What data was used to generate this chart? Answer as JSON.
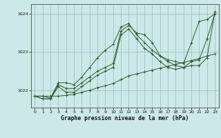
{
  "title": "Graphe pression niveau de la mer (hPa)",
  "background_color": "#cce8e8",
  "grid_color": "#99bbbb",
  "line_color": "#2d5a2d",
  "xlim": [
    -0.5,
    23.5
  ],
  "ylim": [
    1021.55,
    1024.25
  ],
  "yticks": [
    1022,
    1023,
    1024
  ],
  "xtick_labels": [
    "0",
    "1",
    "2",
    "3",
    "4",
    "5",
    "6",
    "7",
    "8",
    "9",
    "10",
    "11",
    "12",
    "13",
    "14",
    "15",
    "16",
    "17",
    "18",
    "19",
    "20",
    "21",
    "22",
    "23"
  ],
  "series": [
    [
      1021.85,
      1021.85,
      1021.8,
      1022.2,
      1022.2,
      1022.15,
      1022.35,
      1022.6,
      1022.85,
      1023.05,
      1023.2,
      1023.65,
      1023.75,
      1023.45,
      1023.25,
      1023.05,
      1022.9,
      1022.8,
      1022.75,
      1022.7,
      1023.25,
      1023.8,
      1023.85,
      1024.0
    ],
    [
      1021.85,
      1021.78,
      1021.78,
      1022.15,
      1022.05,
      1022.05,
      1022.2,
      1022.35,
      1022.5,
      1022.6,
      1022.7,
      1023.55,
      1023.7,
      1023.5,
      1023.45,
      1023.25,
      1022.9,
      1022.75,
      1022.65,
      1022.6,
      1022.65,
      1022.65,
      1022.85,
      1024.05
    ],
    [
      1021.85,
      1021.78,
      1021.78,
      1022.1,
      1021.95,
      1021.95,
      1022.1,
      1022.25,
      1022.4,
      1022.5,
      1022.6,
      1023.45,
      1023.6,
      1023.35,
      1023.1,
      1022.95,
      1022.75,
      1022.6,
      1022.55,
      1022.6,
      1022.75,
      1022.8,
      1023.35,
      1024.0
    ],
    [
      1021.85,
      1021.85,
      1021.85,
      1021.85,
      1021.87,
      1021.9,
      1021.95,
      1022.0,
      1022.07,
      1022.12,
      1022.18,
      1022.28,
      1022.38,
      1022.43,
      1022.48,
      1022.53,
      1022.58,
      1022.63,
      1022.68,
      1022.73,
      1022.78,
      1022.83,
      1022.9,
      1022.95
    ]
  ]
}
